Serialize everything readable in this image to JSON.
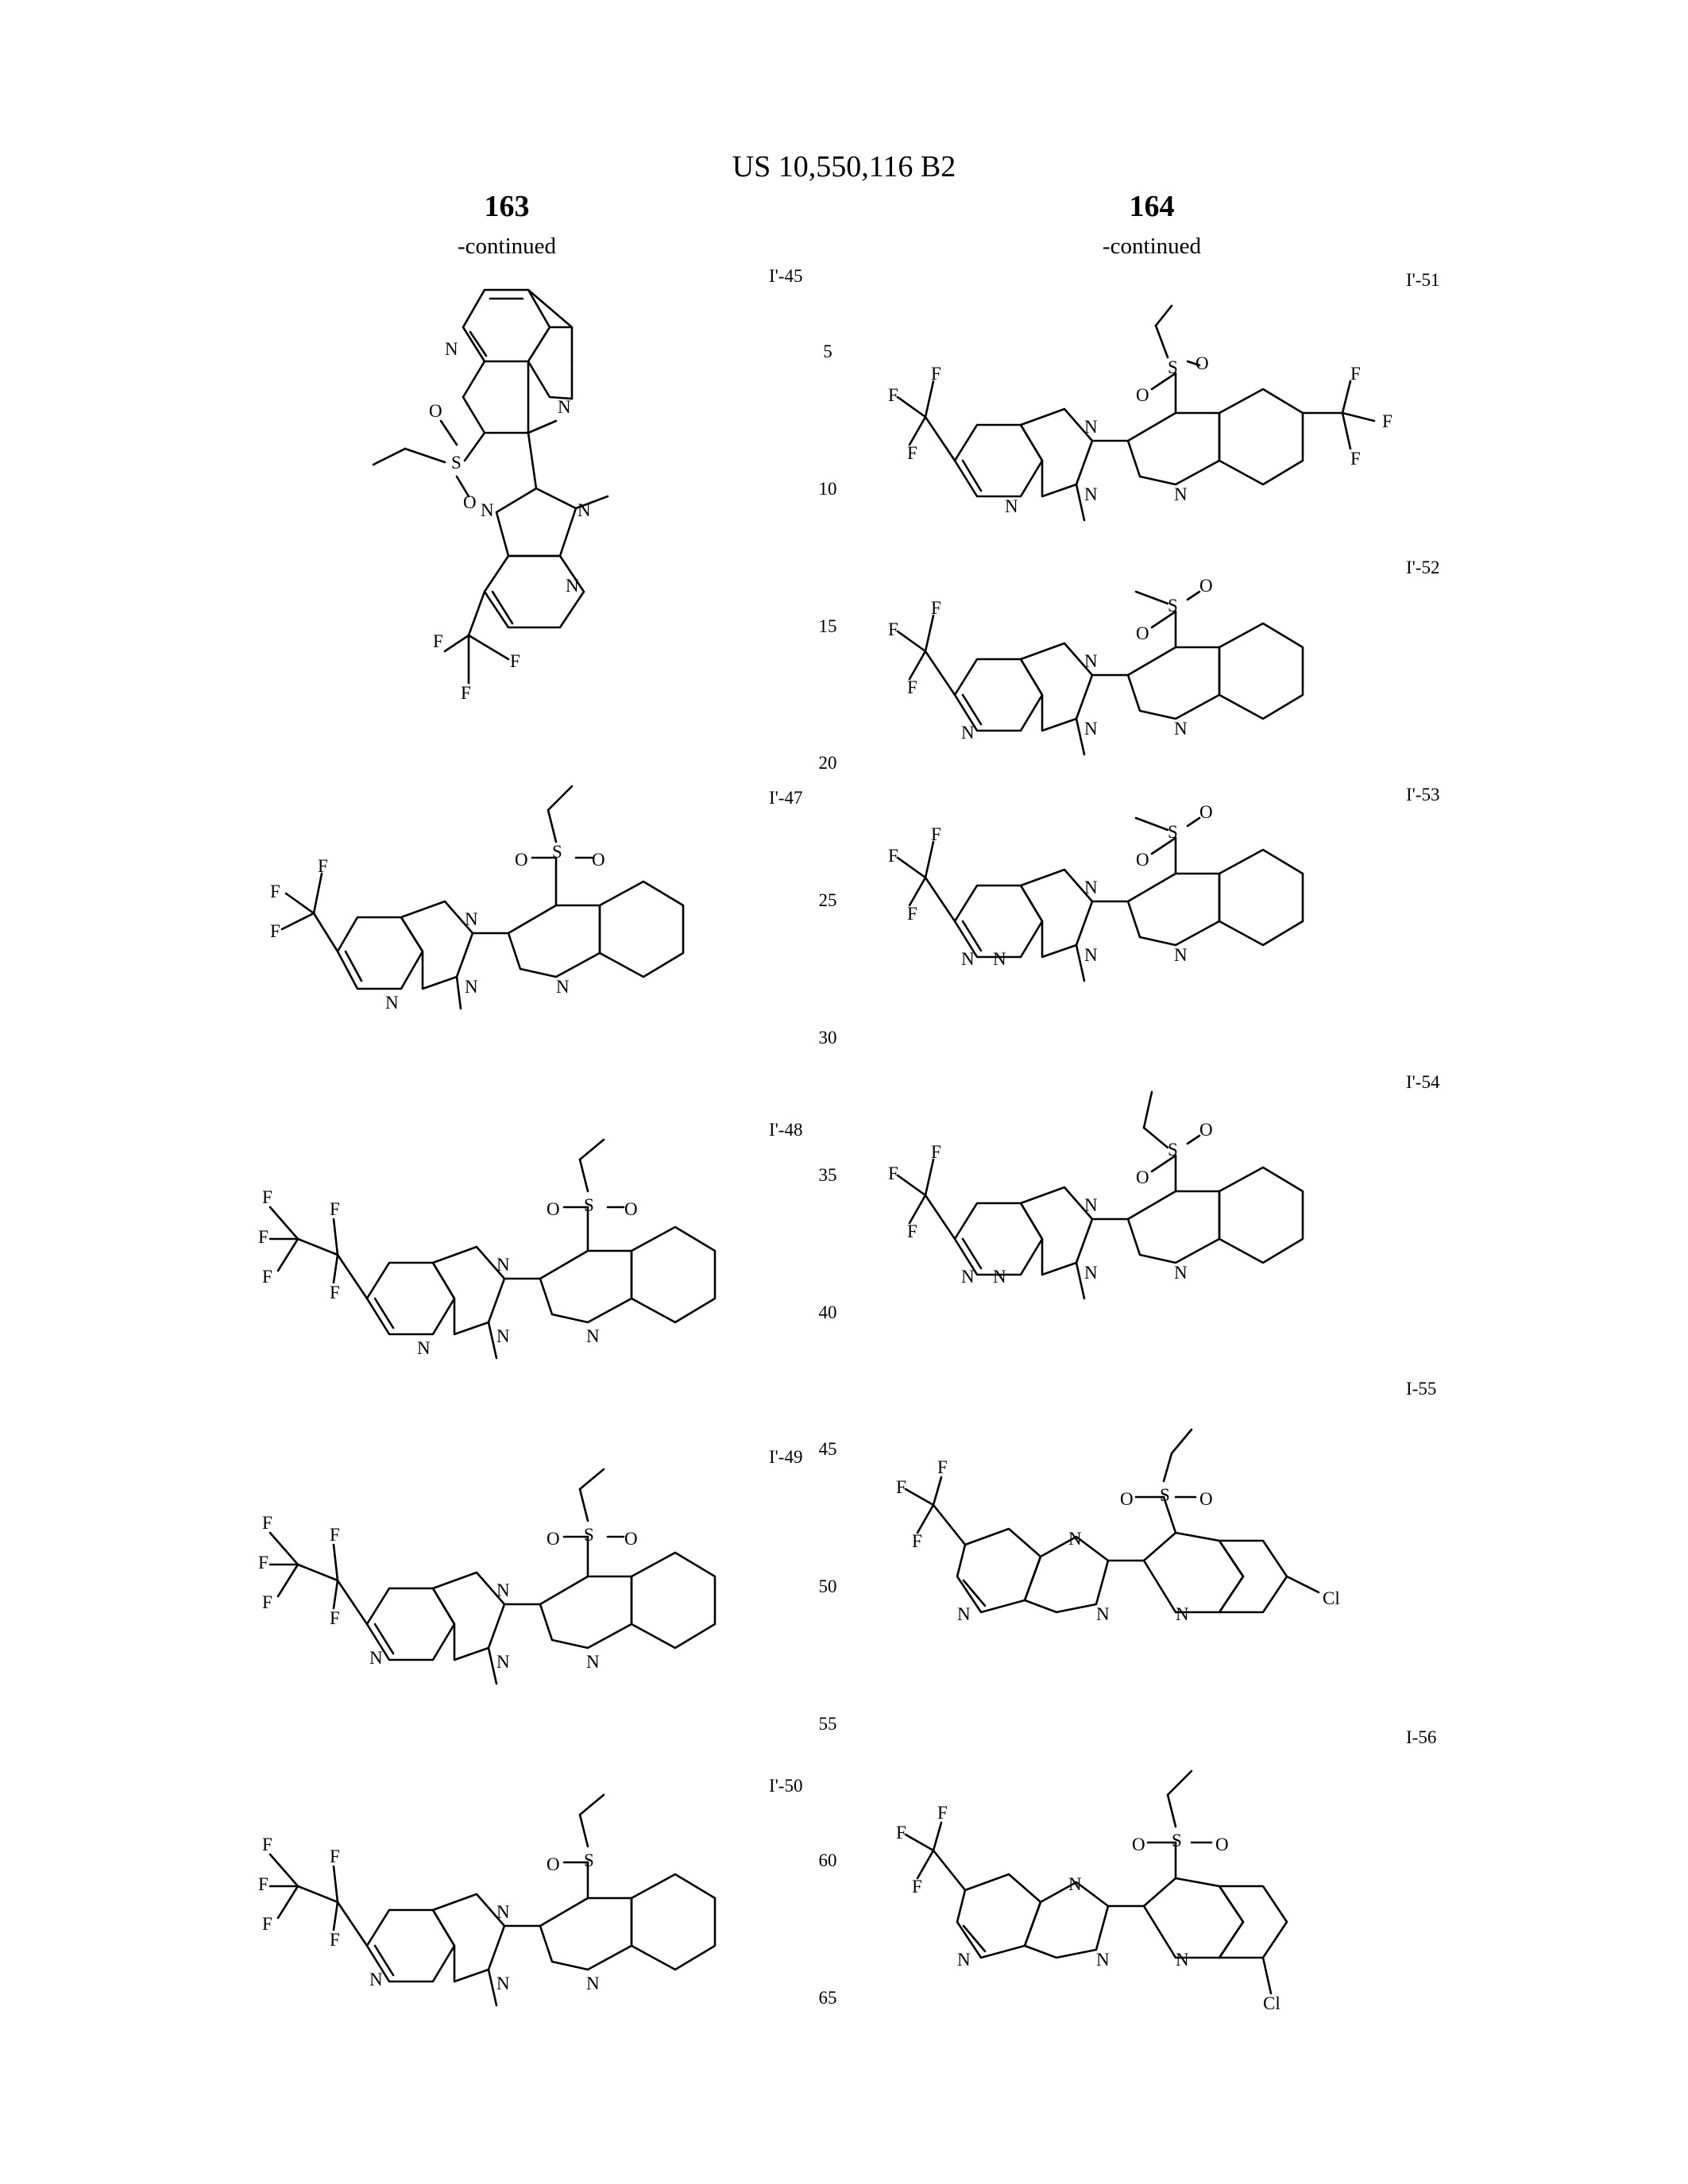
{
  "header": {
    "patent_number": "US 10,550,116 B2",
    "left_column_number": "163",
    "right_column_number": "164",
    "continued_label": "-continued"
  },
  "line_numbers": [
    "5",
    "10",
    "15",
    "20",
    "25",
    "30",
    "35",
    "40",
    "45",
    "50",
    "55",
    "60",
    "65"
  ],
  "compounds": [
    {
      "id": "I'-45"
    },
    {
      "id": "I'-47"
    },
    {
      "id": "I'-48"
    },
    {
      "id": "I'-49"
    },
    {
      "id": "I'-50"
    },
    {
      "id": "I'-51"
    },
    {
      "id": "I'-52"
    },
    {
      "id": "I'-53"
    },
    {
      "id": "I'-54"
    },
    {
      "id": "I-55"
    },
    {
      "id": "I-56"
    }
  ],
  "atom_labels": {
    "N": "N",
    "O": "O",
    "S": "S",
    "F": "F",
    "Cl": "Cl"
  }
}
